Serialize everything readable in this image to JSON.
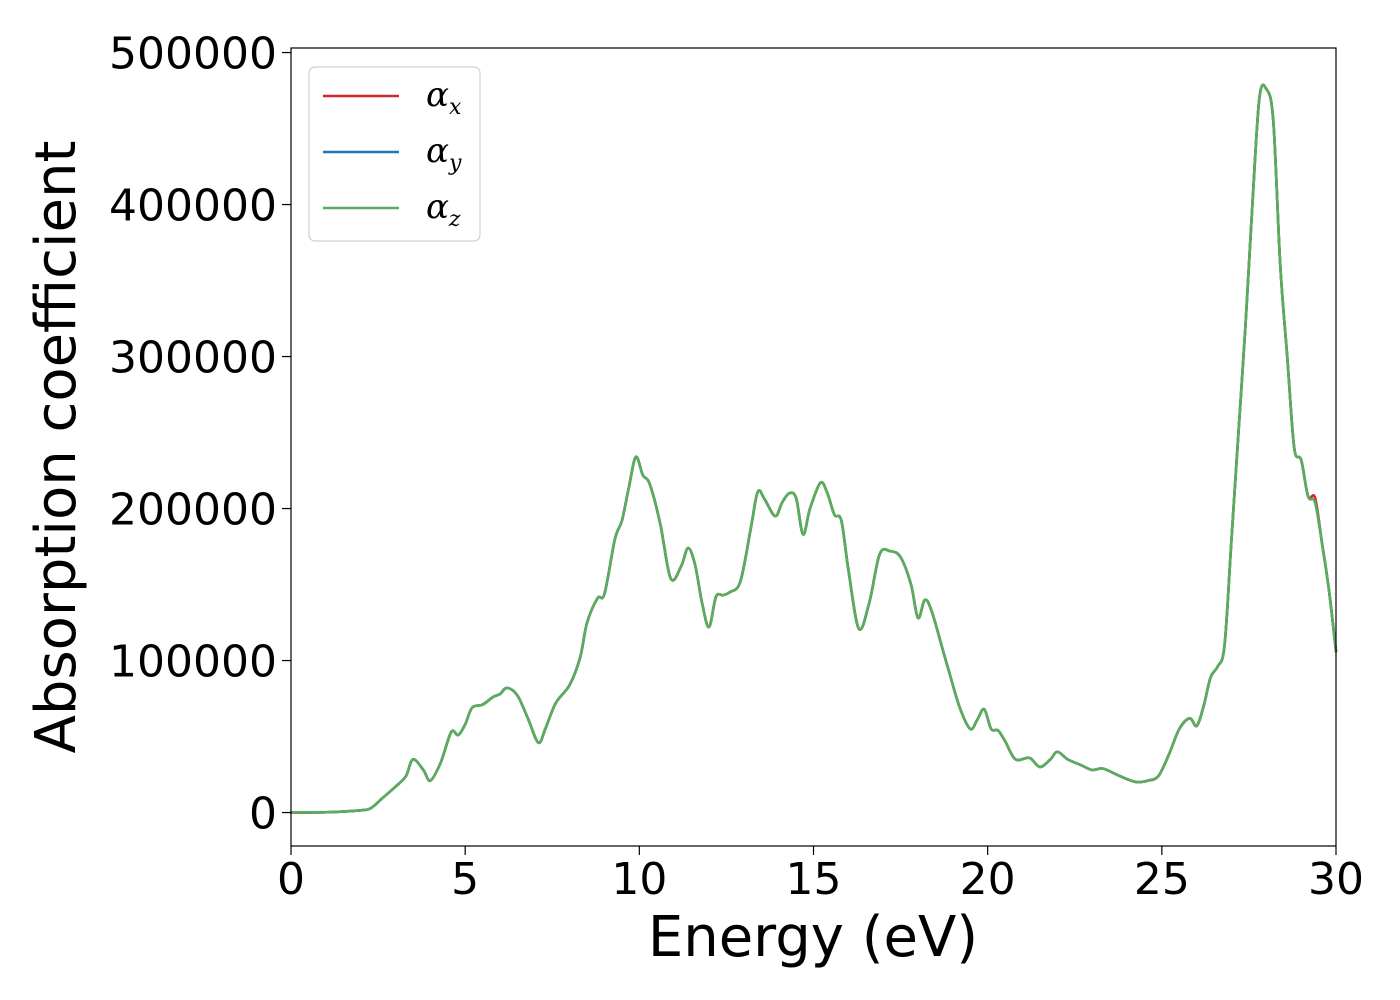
{
  "chart_data": {
    "type": "line",
    "xlabel": "Energy (eV)",
    "ylabel": "Absorption coefficient",
    "xlim": [
      0,
      30
    ],
    "ylim": [
      -22000,
      503000
    ],
    "x_ticks": [
      0,
      5,
      10,
      15,
      20,
      25,
      30
    ],
    "x_tick_labels": [
      "0",
      "5",
      "10",
      "15",
      "20",
      "25",
      "30"
    ],
    "y_ticks": [
      0,
      100000,
      200000,
      300000,
      400000,
      500000
    ],
    "y_tick_labels": [
      "0",
      "100000",
      "200000",
      "300000",
      "400000",
      "500000"
    ],
    "grid": false,
    "legend_position": "top-left",
    "x": [
      0,
      1,
      2,
      2.3,
      2.6,
      3.0,
      3.3,
      3.5,
      3.8,
      4.0,
      4.3,
      4.6,
      4.8,
      5.0,
      5.2,
      5.5,
      5.8,
      6.0,
      6.2,
      6.5,
      6.8,
      7.1,
      7.3,
      7.6,
      8.0,
      8.3,
      8.5,
      8.8,
      9.0,
      9.3,
      9.5,
      9.7,
      9.9,
      10.1,
      10.3,
      10.6,
      10.9,
      11.2,
      11.4,
      11.6,
      11.8,
      12.0,
      12.2,
      12.4,
      12.6,
      12.9,
      13.2,
      13.4,
      13.6,
      13.9,
      14.1,
      14.3,
      14.5,
      14.7,
      14.9,
      15.2,
      15.4,
      15.6,
      15.8,
      16.0,
      16.3,
      16.6,
      16.9,
      17.2,
      17.5,
      17.8,
      18.0,
      18.2,
      18.4,
      18.7,
      18.9,
      19.2,
      19.5,
      19.7,
      19.9,
      20.1,
      20.3,
      20.5,
      20.8,
      21.2,
      21.5,
      21.8,
      22.0,
      22.3,
      22.7,
      23.0,
      23.3,
      23.7,
      24.0,
      24.3,
      24.6,
      24.9,
      25.2,
      25.5,
      25.8,
      26.0,
      26.2,
      26.4,
      26.6,
      26.8,
      27.0,
      27.2,
      27.4,
      27.6,
      27.8,
      28.0,
      28.2,
      28.4,
      28.6,
      28.8,
      29.0,
      29.2,
      29.4,
      29.6,
      29.8,
      30.0
    ],
    "series": [
      {
        "name": "x",
        "color": "#d62728",
        "dasharray": "",
        "values": [
          0,
          200,
          1500,
          3000,
          9000,
          17000,
          24000,
          35000,
          28000,
          21000,
          33000,
          53000,
          51000,
          58000,
          69000,
          71000,
          76000,
          78000,
          82000,
          77000,
          62000,
          46000,
          55000,
          72000,
          84000,
          102000,
          125000,
          141000,
          144000,
          180000,
          192000,
          214000,
          234000,
          222000,
          216000,
          190000,
          154000,
          162000,
          174000,
          163000,
          138000,
          122000,
          142000,
          143000,
          145000,
          152000,
          187000,
          211000,
          206000,
          195000,
          204000,
          210000,
          207000,
          183000,
          200000,
          217000,
          210000,
          196000,
          192000,
          160000,
          121000,
          138000,
          170000,
          172000,
          168000,
          150000,
          128000,
          140000,
          132000,
          108000,
          92000,
          69000,
          55000,
          61000,
          68000,
          55000,
          54000,
          47000,
          35000,
          36000,
          30000,
          35000,
          40000,
          35000,
          31000,
          28000,
          29000,
          25000,
          22000,
          20000,
          21000,
          24000,
          38000,
          55000,
          62000,
          57000,
          70000,
          89000,
          96000,
          110000,
          180000,
          250000,
          320000,
          400000,
          470000,
          476000,
          455000,
          360000,
          300000,
          240000,
          232000,
          208000,
          207000,
          177000,
          146000,
          106000
        ]
      },
      {
        "name": "y",
        "color": "#1f77b4",
        "dasharray": "",
        "values": [
          0,
          200,
          1500,
          3000,
          9000,
          17000,
          24000,
          35000,
          28000,
          21000,
          33000,
          53000,
          51000,
          58000,
          69000,
          71000,
          76000,
          78000,
          82000,
          77000,
          62000,
          46000,
          55000,
          72000,
          84000,
          102000,
          125000,
          141000,
          144000,
          180000,
          192000,
          214000,
          234000,
          222000,
          216000,
          190000,
          154000,
          162000,
          174000,
          163000,
          138000,
          122000,
          142000,
          143000,
          145000,
          152000,
          187000,
          211000,
          206000,
          195000,
          204000,
          210000,
          207000,
          183000,
          200000,
          217000,
          210000,
          196000,
          192000,
          160000,
          121000,
          138000,
          170000,
          172000,
          168000,
          150000,
          128000,
          140000,
          132000,
          108000,
          92000,
          69000,
          55000,
          61000,
          68000,
          55000,
          54000,
          47000,
          35000,
          36000,
          30000,
          35000,
          40000,
          35000,
          31000,
          28000,
          29000,
          25000,
          22000,
          20000,
          21000,
          24000,
          38000,
          55000,
          62000,
          57000,
          70000,
          89000,
          96000,
          110000,
          180000,
          250000,
          320000,
          400000,
          470000,
          476000,
          455000,
          360000,
          300000,
          240000,
          232000,
          208000,
          204000,
          177000,
          146000,
          106000
        ]
      },
      {
        "name": "z",
        "color": "#5aad5a",
        "dasharray": "",
        "values": [
          0,
          200,
          1500,
          3000,
          9000,
          17000,
          24000,
          35000,
          28000,
          21000,
          33000,
          53000,
          51000,
          58000,
          69000,
          71000,
          76000,
          78000,
          82000,
          77000,
          62000,
          46000,
          55000,
          72000,
          84000,
          102000,
          125000,
          141000,
          144000,
          180000,
          192000,
          214000,
          234000,
          222000,
          216000,
          190000,
          154000,
          162000,
          174000,
          163000,
          138000,
          122000,
          142000,
          143000,
          145000,
          152000,
          187000,
          211000,
          206000,
          195000,
          204000,
          210000,
          207000,
          183000,
          200000,
          217000,
          210000,
          196000,
          192000,
          160000,
          121000,
          138000,
          170000,
          172000,
          168000,
          150000,
          128000,
          140000,
          132000,
          108000,
          92000,
          69000,
          55000,
          61000,
          68000,
          55000,
          54000,
          47000,
          35000,
          36000,
          30000,
          35000,
          40000,
          35000,
          31000,
          28000,
          29000,
          25000,
          22000,
          20000,
          21000,
          24000,
          38000,
          55000,
          62000,
          57000,
          70000,
          89000,
          96000,
          110000,
          180000,
          250000,
          320000,
          400000,
          470000,
          476000,
          455000,
          360000,
          300000,
          240000,
          232000,
          208000,
          204000,
          177000,
          146000,
          106000
        ]
      }
    ]
  }
}
